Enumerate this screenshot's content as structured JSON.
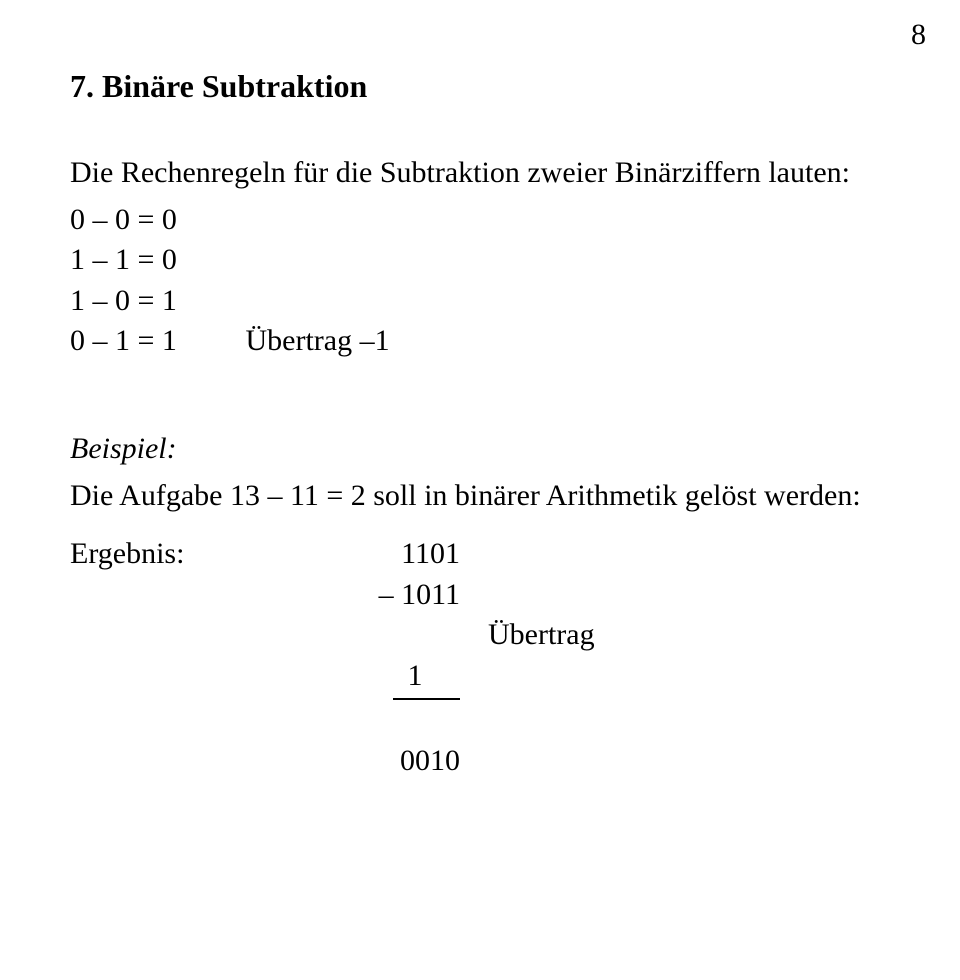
{
  "page_number": "8",
  "heading": "7. Binäre Subtraktion",
  "intro": "Die Rechenregeln für die Subtraktion zweier Binärziffern lauten:",
  "rules": [
    {
      "expr": "0 – 0 = 0",
      "extra": ""
    },
    {
      "expr": "1 – 1 = 0",
      "extra": ""
    },
    {
      "expr": "1 – 0 = 1",
      "extra": ""
    },
    {
      "expr": "0 – 1 = 1",
      "extra": "Übertrag –1"
    }
  ],
  "example_label": "Beispiel:",
  "example_text": "Die Aufgabe 13 – 11 = 2 soll in binärer Arithmetik gelöst werden:",
  "calc": {
    "result_label": "Ergebnis:",
    "line1": "  1101",
    "line2": "– 1011",
    "carry_line": "  1     ",
    "carry_note": "Übertrag",
    "result": "  0010"
  }
}
